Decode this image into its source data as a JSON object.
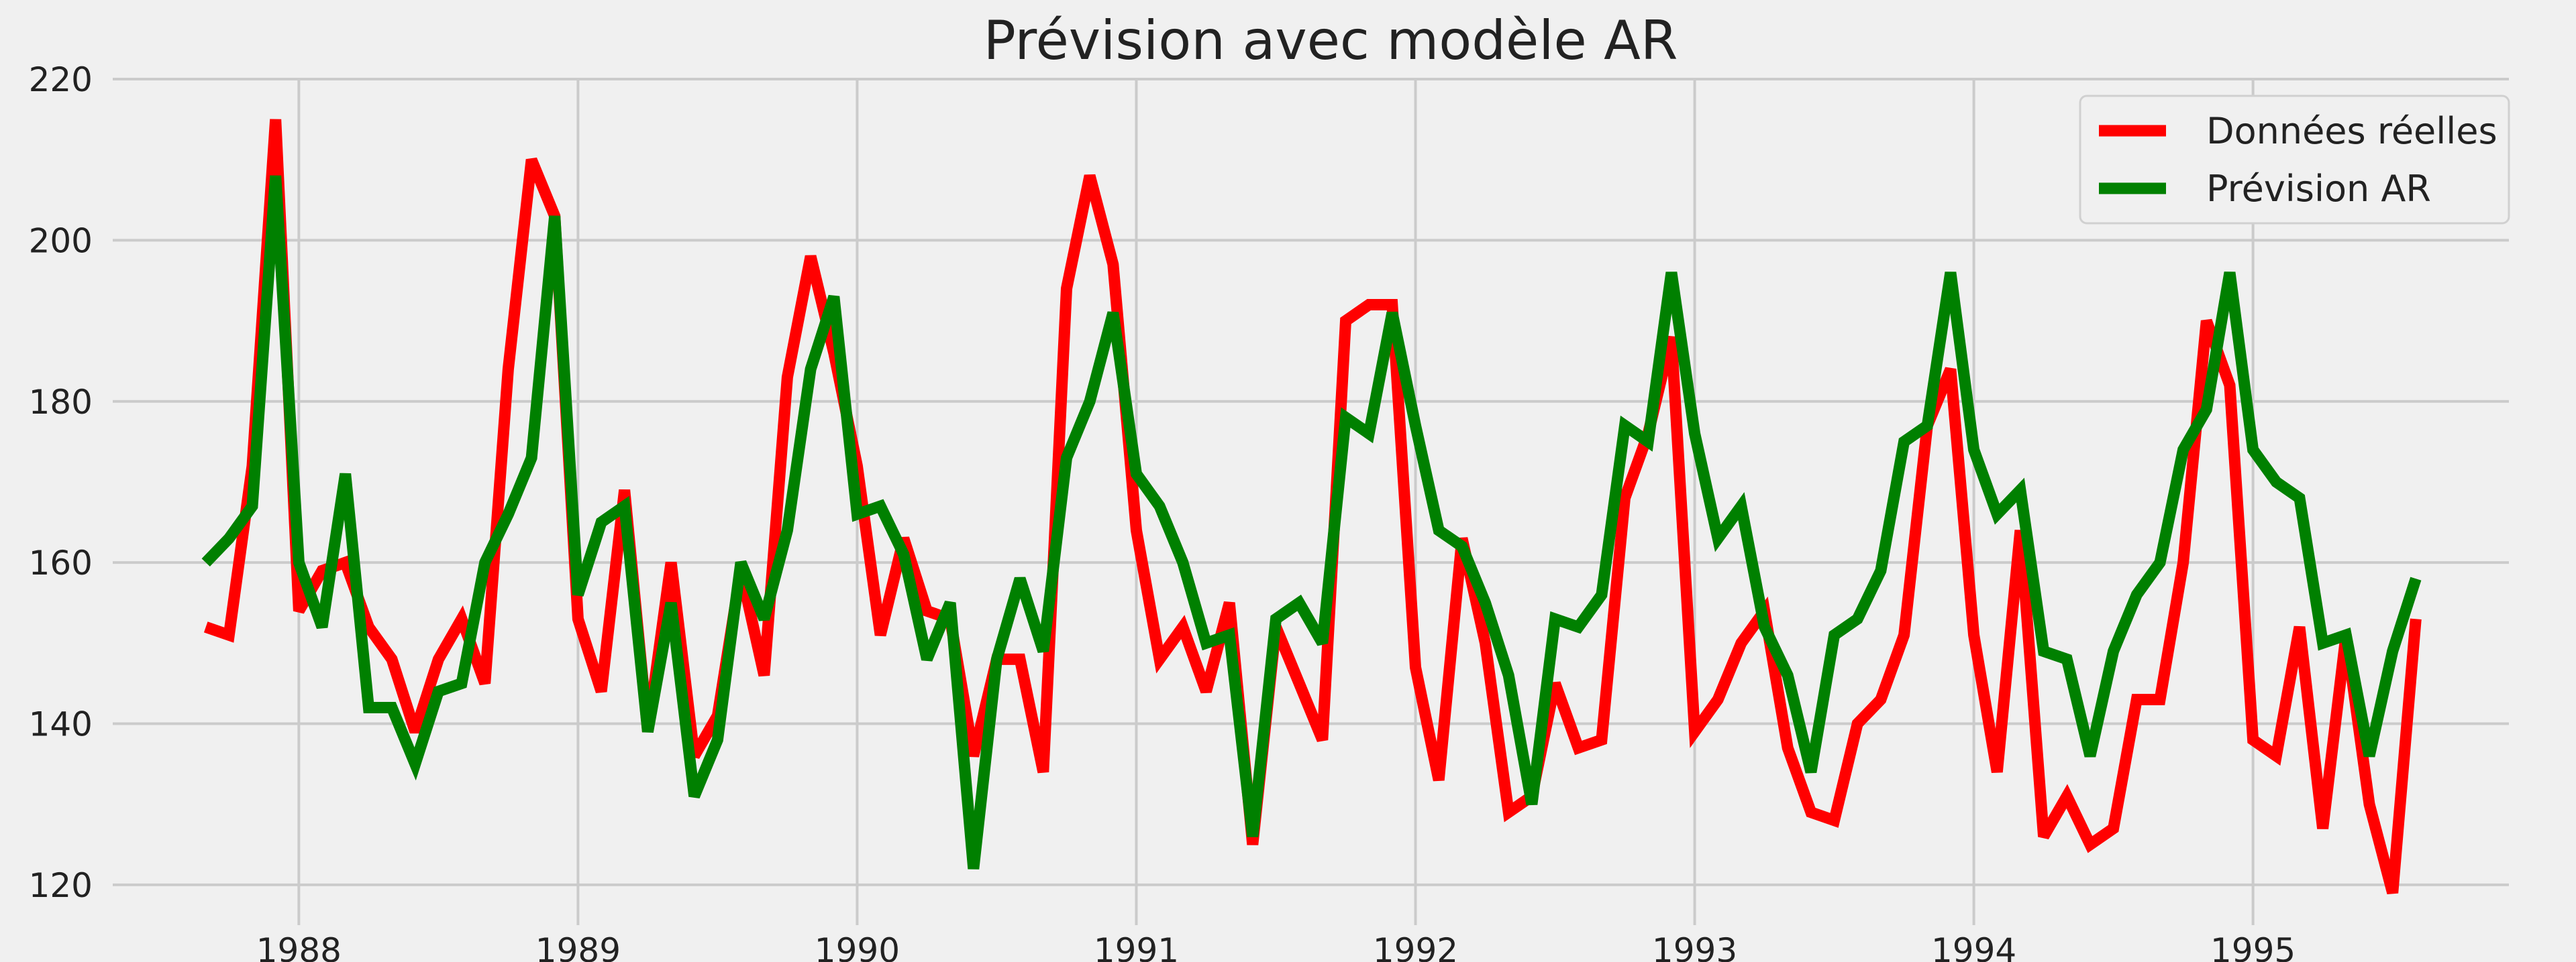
{
  "chart_data": {
    "type": "line",
    "title": "Prévision avec modèle AR",
    "xlabel": "",
    "ylabel": "",
    "x_ticks": [
      "1988",
      "1989",
      "1990",
      "1991",
      "1992",
      "1993",
      "1994",
      "1995"
    ],
    "y_ticks": [
      120,
      140,
      160,
      180,
      200,
      220
    ],
    "xlim": [
      "1987-05",
      "1995-12"
    ],
    "ylim": [
      115,
      220
    ],
    "grid": true,
    "legend_position": "top-right",
    "x": [
      "1987-09",
      "1987-10",
      "1987-11",
      "1987-12",
      "1988-01",
      "1988-02",
      "1988-03",
      "1988-04",
      "1988-05",
      "1988-06",
      "1988-07",
      "1988-08",
      "1988-09",
      "1988-10",
      "1988-11",
      "1988-12",
      "1989-01",
      "1989-02",
      "1989-03",
      "1989-04",
      "1989-05",
      "1989-06",
      "1989-07",
      "1989-08",
      "1989-09",
      "1989-10",
      "1989-11",
      "1989-12",
      "1990-01",
      "1990-02",
      "1990-03",
      "1990-04",
      "1990-05",
      "1990-06",
      "1990-07",
      "1990-08",
      "1990-09",
      "1990-10",
      "1990-11",
      "1990-12",
      "1991-01",
      "1991-02",
      "1991-03",
      "1991-04",
      "1991-05",
      "1991-06",
      "1991-07",
      "1991-08",
      "1991-09",
      "1991-10",
      "1991-11",
      "1991-12",
      "1992-01",
      "1992-02",
      "1992-03",
      "1992-04",
      "1992-05",
      "1992-06",
      "1992-07",
      "1992-08",
      "1992-09",
      "1992-10",
      "1992-11",
      "1992-12",
      "1993-01",
      "1993-02",
      "1993-03",
      "1993-04",
      "1993-05",
      "1993-06",
      "1993-07",
      "1993-08",
      "1993-09",
      "1993-10",
      "1993-11",
      "1993-12",
      "1994-01",
      "1994-02",
      "1994-03",
      "1994-04",
      "1994-05",
      "1994-06",
      "1994-07",
      "1994-08",
      "1994-09",
      "1994-10",
      "1994-11",
      "1994-12",
      "1995-01",
      "1995-02",
      "1995-03",
      "1995-04",
      "1995-05",
      "1995-06",
      "1995-07",
      "1995-08"
    ],
    "series": [
      {
        "name": "Données réelles",
        "color": "#ff0000",
        "values": [
          152,
          151,
          172,
          215,
          154,
          159,
          160,
          152,
          148,
          139,
          148,
          153,
          145,
          184,
          210,
          203,
          153,
          144,
          169,
          139,
          160,
          136,
          141,
          159,
          146,
          183,
          198,
          186,
          172,
          151,
          163,
          154,
          153,
          136,
          148,
          148,
          134,
          194,
          208,
          197,
          164,
          148,
          152,
          144,
          155,
          125,
          152,
          145,
          138,
          190,
          192,
          192,
          147,
          133,
          163,
          150,
          129,
          131,
          145,
          137,
          138,
          168,
          176,
          188,
          139,
          143,
          150,
          154,
          137,
          129,
          128,
          140,
          143,
          151,
          177,
          184,
          151,
          134,
          164,
          126,
          131,
          125,
          127,
          143,
          143,
          160,
          190,
          182,
          138,
          136,
          152,
          127,
          151,
          130,
          119,
          153
        ]
      },
      {
        "name": "Prévision AR",
        "color": "#008000",
        "values": [
          160,
          163,
          167,
          208,
          160,
          152,
          171,
          142,
          142,
          135,
          144,
          145,
          160,
          166,
          173,
          203,
          156,
          165,
          167,
          139,
          155,
          131,
          138,
          160,
          153,
          164,
          184,
          193,
          166,
          167,
          161,
          148,
          155,
          122,
          148,
          158,
          149,
          173,
          180,
          191,
          171,
          167,
          160,
          150,
          151,
          126,
          153,
          155,
          150,
          178,
          176,
          191,
          177,
          164,
          162,
          155,
          146,
          130,
          153,
          152,
          156,
          177,
          175,
          196,
          176,
          163,
          167,
          152,
          146,
          134,
          151,
          153,
          159,
          175,
          177,
          196,
          174,
          166,
          169,
          149,
          148,
          136,
          149,
          156,
          160,
          174,
          179,
          196,
          174,
          170,
          168,
          150,
          151,
          136,
          149,
          158
        ]
      }
    ]
  }
}
